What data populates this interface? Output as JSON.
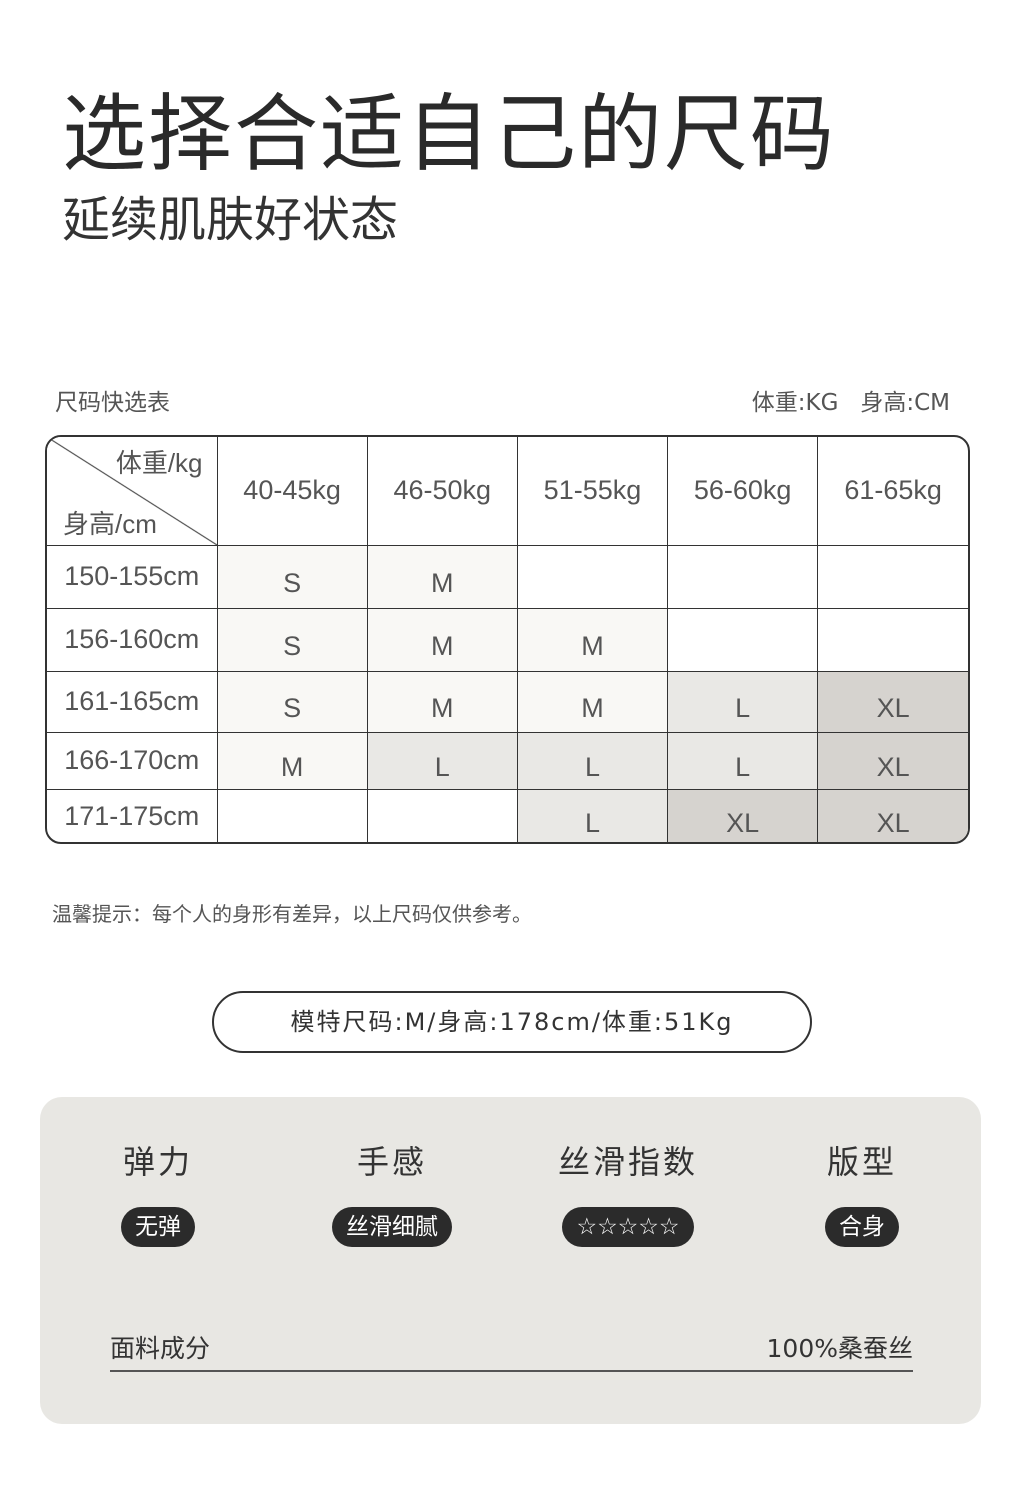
{
  "header": {
    "title": "选择合适自己的尺码",
    "subtitle": "延续肌肤好状态"
  },
  "size_table": {
    "label": "尺码快选表",
    "units": "体重:KG   身高:CM",
    "corner_weight": "体重/kg",
    "corner_height": "身高/cm",
    "columns": [
      "40-45kg",
      "46-50kg",
      "51-55kg",
      "56-60kg",
      "61-65kg"
    ],
    "rows": [
      {
        "height": "150-155cm",
        "sizes": [
          "S",
          "M",
          "",
          "",
          ""
        ]
      },
      {
        "height": "156-160cm",
        "sizes": [
          "S",
          "M",
          "M",
          "",
          ""
        ]
      },
      {
        "height": "161-165cm",
        "sizes": [
          "S",
          "M",
          "M",
          "L",
          "XL"
        ]
      },
      {
        "height": "166-170cm",
        "sizes": [
          "M",
          "L",
          "L",
          "L",
          "XL"
        ]
      },
      {
        "height": "171-175cm",
        "sizes": [
          "",
          "",
          "L",
          "XL",
          "XL"
        ]
      }
    ],
    "size_colors": {
      "S": "#f9f8f5",
      "M": "#f9f8f5",
      "L": "#e9e8e5",
      "XL": "#d6d3cf"
    }
  },
  "tip": "温馨提示：每个人的身形有差异，以上尺码仅供参考。",
  "model": "模特尺码:M/身高:178cm/体重:51Kg",
  "attributes": [
    {
      "name": "弹力",
      "value": "无弹"
    },
    {
      "name": "手感",
      "value": "丝滑细腻"
    },
    {
      "name": "丝滑指数",
      "value": "☆☆☆☆☆"
    },
    {
      "name": "版型",
      "value": "合身"
    }
  ],
  "fabric": {
    "label": "面料成分",
    "value": "100%桑蚕丝"
  }
}
